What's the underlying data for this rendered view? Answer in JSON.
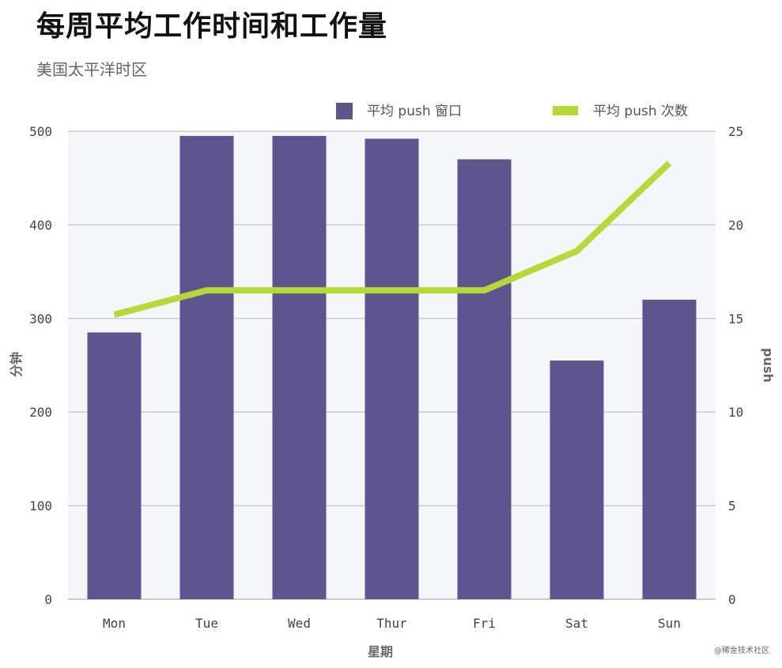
{
  "title": "每周平均工作时间和工作量",
  "subtitle": "美国太平洋时区",
  "watermark": "@稀金技术社区",
  "colors": {
    "bar": "#5e548e",
    "line": "#b5d936",
    "plot_bg": "#f4f6f9",
    "grid": "#c9ccd4"
  },
  "chart_data": {
    "type": "bar",
    "categories": [
      "Mon",
      "Tue",
      "Wed",
      "Thur",
      "Fri",
      "Sat",
      "Sun"
    ],
    "xlabel": "星期",
    "ylabel": "分钟",
    "y2label": "push",
    "ylim": [
      0,
      500
    ],
    "y2lim": [
      0,
      25
    ],
    "yticks": [
      0,
      100,
      200,
      300,
      400,
      500
    ],
    "y2ticks": [
      0,
      5,
      10,
      15,
      20,
      25
    ],
    "grid": true,
    "legend_position": "top",
    "series": [
      {
        "name": "平均 push 窗口",
        "type": "bar",
        "axis": "left",
        "values": [
          285,
          495,
          495,
          492,
          470,
          255,
          320
        ]
      },
      {
        "name": "平均 push 次数",
        "type": "line",
        "axis": "right",
        "values": [
          15.2,
          16.5,
          16.5,
          16.5,
          16.5,
          18.6,
          23.3
        ]
      }
    ]
  }
}
